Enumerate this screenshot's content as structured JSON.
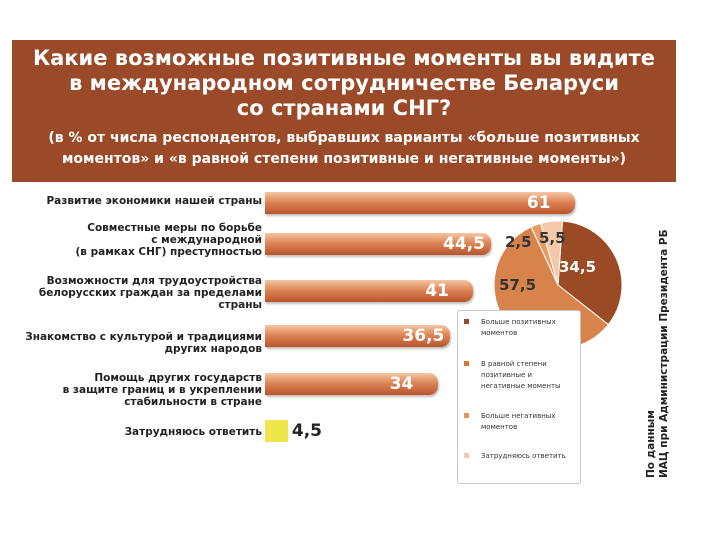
{
  "header": {
    "title_lines": [
      "Какие возможные позитивные моменты вы видите",
      "в международном сотрудничестве Беларуси",
      "со странами СНГ?"
    ],
    "subtitle_lines": [
      "(в % от числа респондентов, выбравших варианты «больше позитивных",
      "моментов» и «в равной степени позитивные и негативные моменты»)"
    ]
  },
  "source": {
    "lines": [
      "По данным",
      "ИАЦ при Администрации Президента РБ"
    ]
  },
  "chart_data": [
    {
      "type": "bar",
      "orientation": "horizontal",
      "categories": [
        [
          "Развитие экономики нашей страны"
        ],
        [
          "Совместные меры по борьбе",
          "с международной",
          "(в рамках СНГ) преступностью"
        ],
        [
          "Возможности для трудоустройства",
          "белорусских граждан за пределами",
          "страны"
        ],
        [
          "Знакомство с культурой и традициями",
          "других народов"
        ],
        [
          "Помощь других государств",
          "в защите границ и в укреплении",
          "стабильности в стране"
        ],
        [
          "Затрудняюсь ответить"
        ]
      ],
      "values": [
        61,
        44.5,
        41,
        36.5,
        34,
        4.5
      ],
      "value_labels": [
        "61",
        "44,5",
        "41",
        "36,5",
        "34",
        "4,5"
      ],
      "colors": [
        "#c8683c",
        "#c8683c",
        "#c8683c",
        "#c8683c",
        "#c8683c",
        "#eee64a"
      ]
    },
    {
      "type": "pie",
      "labels": [
        [
          "Больше позитивных",
          "моментов"
        ],
        [
          "В равной степени",
          "позитивные и",
          "негативные моменты"
        ],
        [
          "Больше негативных",
          "моментов"
        ],
        [
          "Затрудняюсь ответить"
        ]
      ],
      "values": [
        34.5,
        57.5,
        2.5,
        5.5
      ],
      "value_labels": [
        "34,5",
        "57,5",
        "2,5",
        "5,5"
      ],
      "colors": [
        "#9a4a24",
        "#d8834c",
        "#e89a62",
        "#f3c9a9"
      ],
      "legend_colors": [
        "#9a4a24",
        "#e0722f",
        "#e8935a",
        "#f3c9a9"
      ]
    }
  ]
}
